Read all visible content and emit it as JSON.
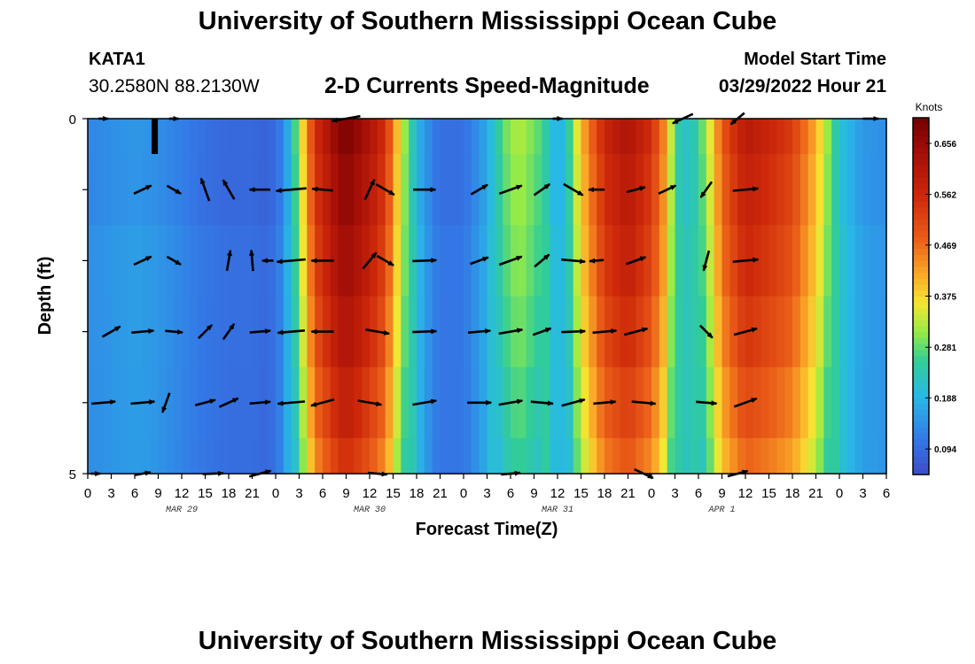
{
  "header": {
    "title": "University of Southern Mississippi Ocean Cube",
    "station_id": "KATA1",
    "coordinates": "30.2580N  88.2130W",
    "subtitle": "2-D Currents Speed-Magnitude",
    "model_start_label": "Model Start Time",
    "model_start_value": "03/29/2022 Hour 21"
  },
  "footer": {
    "title": "University of Southern Mississippi Ocean Cube"
  },
  "chart_data": {
    "type": "heatmap",
    "title": "2-D Currents Speed-Magnitude",
    "xlabel": "Forecast Time(Z)",
    "ylabel": "Depth (ft)",
    "x_hours": [
      -24,
      -21,
      -18,
      -15,
      -12,
      -9,
      -6,
      -3,
      0,
      3,
      6,
      9,
      12,
      15,
      18,
      21,
      24,
      27,
      30,
      33,
      36,
      39,
      42,
      45,
      48,
      51,
      54,
      57,
      60,
      63,
      66,
      69,
      72,
      75,
      78
    ],
    "x_tick_labels": [
      "0",
      "3",
      "6",
      "9",
      "12",
      "15",
      "18",
      "21",
      "0",
      "3",
      "6",
      "9",
      "12",
      "15",
      "18",
      "21",
      "0",
      "3",
      "6",
      "9",
      "12",
      "15",
      "18",
      "21",
      "0",
      "3",
      "6",
      "9",
      "12",
      "15",
      "18",
      "21",
      "0",
      "3",
      "6"
    ],
    "date_labels": [
      {
        "label": "MAR 29",
        "hour": -12
      },
      {
        "label": "MAR 30",
        "hour": 12
      },
      {
        "label": "MAR 31",
        "hour": 36
      },
      {
        "label": "APR 1",
        "hour": 57
      }
    ],
    "x_range_hours": [
      -24,
      78
    ],
    "y_range_ft": [
      0,
      5
    ],
    "y_tick_labels": [
      "0",
      "5"
    ],
    "depth_levels_ft": [
      0,
      1,
      2,
      3,
      4,
      5
    ],
    "colorbar": {
      "units": "Knots",
      "min": 0.047,
      "max": 0.703,
      "tick_values": [
        0.094,
        0.188,
        0.281,
        0.375,
        0.469,
        0.562,
        0.656
      ],
      "tick_labels": [
        "0.094",
        "0.188",
        "0.281",
        "0.375",
        "0.469",
        "0.562",
        "0.656"
      ]
    },
    "speed_profile": {
      "hours": [
        -24,
        -21,
        -18,
        -15,
        -12,
        -9,
        -6,
        -3,
        -1,
        0,
        1,
        2,
        5,
        8,
        9,
        10,
        12,
        14,
        16,
        18,
        20,
        21,
        24,
        27,
        29,
        31,
        34,
        36,
        37,
        39,
        42,
        45,
        48,
        50,
        51,
        53,
        55,
        57,
        58,
        60,
        63,
        66,
        69,
        72,
        75,
        78
      ],
      "knots": [
        0.13,
        0.14,
        0.15,
        0.14,
        0.12,
        0.1,
        0.09,
        0.09,
        0.08,
        0.1,
        0.13,
        0.21,
        0.55,
        0.67,
        0.69,
        0.67,
        0.62,
        0.55,
        0.35,
        0.19,
        0.12,
        0.1,
        0.1,
        0.17,
        0.28,
        0.33,
        0.27,
        0.17,
        0.21,
        0.4,
        0.57,
        0.62,
        0.55,
        0.42,
        0.25,
        0.21,
        0.31,
        0.49,
        0.53,
        0.6,
        0.57,
        0.53,
        0.41,
        0.21,
        0.15,
        0.14
      ],
      "depth_attenuation": [
        1.0,
        0.97,
        0.94,
        0.9,
        0.85,
        0.8
      ]
    },
    "vectors": [
      {
        "hour": -22,
        "depth": 0,
        "dir": 90,
        "len": 0.3
      },
      {
        "hour": -13,
        "depth": 0,
        "dir": 90,
        "len": 0.3
      },
      {
        "hour": 9,
        "depth": 0,
        "dir": 260,
        "len": 0.9
      },
      {
        "hour": 36,
        "depth": 0,
        "dir": 90,
        "len": 0.3
      },
      {
        "hour": 52,
        "depth": 0,
        "dir": 245,
        "len": 0.7
      },
      {
        "hour": 59,
        "depth": 0,
        "dir": 230,
        "len": 0.55
      },
      {
        "hour": 76,
        "depth": 0,
        "dir": 90,
        "len": 0.5
      },
      {
        "hour": -17,
        "depth": 1,
        "dir": 65,
        "len": 0.6
      },
      {
        "hour": -13,
        "depth": 1,
        "dir": 120,
        "len": 0.5
      },
      {
        "hour": -9,
        "depth": 1,
        "dir": 340,
        "len": 0.75
      },
      {
        "hour": -6,
        "depth": 1,
        "dir": 330,
        "len": 0.7
      },
      {
        "hour": -2,
        "depth": 1,
        "dir": 270,
        "len": 0.65
      },
      {
        "hour": 2,
        "depth": 1,
        "dir": 265,
        "len": 0.95
      },
      {
        "hour": 6,
        "depth": 1,
        "dir": 275,
        "len": 0.65
      },
      {
        "hour": 12,
        "depth": 1,
        "dir": 25,
        "len": 0.7
      },
      {
        "hour": 14,
        "depth": 1,
        "dir": 120,
        "len": 0.65
      },
      {
        "hour": 19,
        "depth": 1,
        "dir": 90,
        "len": 0.7
      },
      {
        "hour": 26,
        "depth": 1,
        "dir": 60,
        "len": 0.6
      },
      {
        "hour": 30,
        "depth": 1,
        "dir": 70,
        "len": 0.75
      },
      {
        "hour": 34,
        "depth": 1,
        "dir": 55,
        "len": 0.6
      },
      {
        "hour": 38,
        "depth": 1,
        "dir": 120,
        "len": 0.7
      },
      {
        "hour": 41,
        "depth": 1,
        "dir": 270,
        "len": 0.5
      },
      {
        "hour": 46,
        "depth": 1,
        "dir": 75,
        "len": 0.6
      },
      {
        "hour": 50,
        "depth": 1,
        "dir": 65,
        "len": 0.6
      },
      {
        "hour": 55,
        "depth": 1,
        "dir": 215,
        "len": 0.6
      },
      {
        "hour": 60,
        "depth": 1,
        "dir": 85,
        "len": 0.8
      },
      {
        "hour": -17,
        "depth": 2,
        "dir": 65,
        "len": 0.6
      },
      {
        "hour": -13,
        "depth": 2,
        "dir": 120,
        "len": 0.5
      },
      {
        "hour": -6,
        "depth": 2,
        "dir": 10,
        "len": 0.65
      },
      {
        "hour": -3,
        "depth": 2,
        "dir": 355,
        "len": 0.65
      },
      {
        "hour": -1,
        "depth": 2,
        "dir": 270,
        "len": 0.35
      },
      {
        "hour": 2,
        "depth": 2,
        "dir": 265,
        "len": 0.9
      },
      {
        "hour": 6,
        "depth": 2,
        "dir": 270,
        "len": 0.7
      },
      {
        "hour": 12,
        "depth": 2,
        "dir": 40,
        "len": 0.65
      },
      {
        "hour": 14,
        "depth": 2,
        "dir": 120,
        "len": 0.6
      },
      {
        "hour": 19,
        "depth": 2,
        "dir": 88,
        "len": 0.75
      },
      {
        "hour": 26,
        "depth": 2,
        "dir": 70,
        "len": 0.6
      },
      {
        "hour": 30,
        "depth": 2,
        "dir": 70,
        "len": 0.75
      },
      {
        "hour": 34,
        "depth": 2,
        "dir": 50,
        "len": 0.6
      },
      {
        "hour": 38,
        "depth": 2,
        "dir": 95,
        "len": 0.75
      },
      {
        "hour": 41,
        "depth": 2,
        "dir": 265,
        "len": 0.45
      },
      {
        "hour": 46,
        "depth": 2,
        "dir": 70,
        "len": 0.65
      },
      {
        "hour": 55,
        "depth": 2,
        "dir": 195,
        "len": 0.65
      },
      {
        "hour": 60,
        "depth": 2,
        "dir": 85,
        "len": 0.8
      },
      {
        "hour": -21,
        "depth": 3,
        "dir": 60,
        "len": 0.65
      },
      {
        "hour": -17,
        "depth": 3,
        "dir": 85,
        "len": 0.7
      },
      {
        "hour": -13,
        "depth": 3,
        "dir": 95,
        "len": 0.55
      },
      {
        "hour": -9,
        "depth": 3,
        "dir": 45,
        "len": 0.6
      },
      {
        "hour": -6,
        "depth": 3,
        "dir": 35,
        "len": 0.6
      },
      {
        "hour": -2,
        "depth": 3,
        "dir": 85,
        "len": 0.65
      },
      {
        "hour": 2,
        "depth": 3,
        "dir": 265,
        "len": 0.85
      },
      {
        "hour": 6,
        "depth": 3,
        "dir": 270,
        "len": 0.7
      },
      {
        "hour": 13,
        "depth": 3,
        "dir": 100,
        "len": 0.75
      },
      {
        "hour": 19,
        "depth": 3,
        "dir": 88,
        "len": 0.75
      },
      {
        "hour": 26,
        "depth": 3,
        "dir": 85,
        "len": 0.7
      },
      {
        "hour": 30,
        "depth": 3,
        "dir": 80,
        "len": 0.75
      },
      {
        "hour": 34,
        "depth": 3,
        "dir": 70,
        "len": 0.6
      },
      {
        "hour": 38,
        "depth": 3,
        "dir": 88,
        "len": 0.75
      },
      {
        "hour": 42,
        "depth": 3,
        "dir": 85,
        "len": 0.75
      },
      {
        "hour": 46,
        "depth": 3,
        "dir": 75,
        "len": 0.75
      },
      {
        "hour": 55,
        "depth": 3,
        "dir": 135,
        "len": 0.55
      },
      {
        "hour": 60,
        "depth": 3,
        "dir": 75,
        "len": 0.75
      },
      {
        "hour": -22,
        "depth": 4,
        "dir": 85,
        "len": 0.75
      },
      {
        "hour": -17,
        "depth": 4,
        "dir": 85,
        "len": 0.75
      },
      {
        "hour": -14,
        "depth": 4,
        "dir": 200,
        "len": 0.65
      },
      {
        "hour": -9,
        "depth": 4,
        "dir": 75,
        "len": 0.65
      },
      {
        "hour": -6,
        "depth": 4,
        "dir": 65,
        "len": 0.65
      },
      {
        "hour": -2,
        "depth": 4,
        "dir": 85,
        "len": 0.65
      },
      {
        "hour": 2,
        "depth": 4,
        "dir": 265,
        "len": 0.85
      },
      {
        "hour": 6,
        "depth": 4,
        "dir": 255,
        "len": 0.75
      },
      {
        "hour": 12,
        "depth": 4,
        "dir": 100,
        "len": 0.75
      },
      {
        "hour": 19,
        "depth": 4,
        "dir": 80,
        "len": 0.75
      },
      {
        "hour": 26,
        "depth": 4,
        "dir": 90,
        "len": 0.75
      },
      {
        "hour": 30,
        "depth": 4,
        "dir": 80,
        "len": 0.75
      },
      {
        "hour": 34,
        "depth": 4,
        "dir": 95,
        "len": 0.7
      },
      {
        "hour": 38,
        "depth": 4,
        "dir": 75,
        "len": 0.75
      },
      {
        "hour": 42,
        "depth": 4,
        "dir": 85,
        "len": 0.7
      },
      {
        "hour": 47,
        "depth": 4,
        "dir": 95,
        "len": 0.75
      },
      {
        "hour": 55,
        "depth": 4,
        "dir": 95,
        "len": 0.65
      },
      {
        "hour": 60,
        "depth": 4,
        "dir": 70,
        "len": 0.75
      },
      {
        "hour": -23,
        "depth": 5,
        "dir": 90,
        "len": 0.3
      },
      {
        "hour": -17,
        "depth": 5,
        "dir": 80,
        "len": 0.5
      },
      {
        "hour": -8,
        "depth": 5,
        "dir": 88,
        "len": 0.65
      },
      {
        "hour": -2,
        "depth": 5,
        "dir": 75,
        "len": 0.7
      },
      {
        "hour": 13,
        "depth": 5,
        "dir": 95,
        "len": 0.6
      },
      {
        "hour": 30,
        "depth": 5,
        "dir": 85,
        "len": 0.6
      },
      {
        "hour": 47,
        "depth": 5,
        "dir": 115,
        "len": 0.65
      },
      {
        "hour": 59,
        "depth": 5,
        "dir": 75,
        "len": 0.65
      }
    ]
  }
}
